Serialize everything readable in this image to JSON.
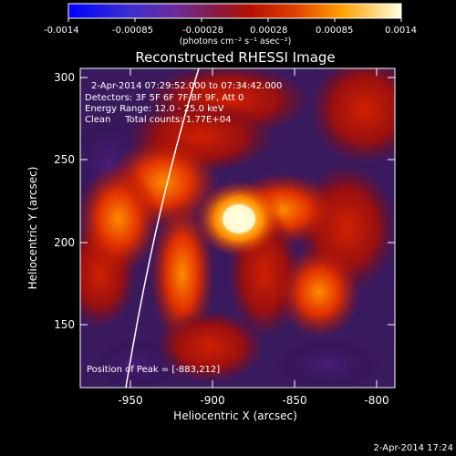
{
  "colorbar": {
    "ticks": [
      "-0.0014",
      "-0.00085",
      "-0.00028",
      "0.00028",
      "0.00085",
      "0.0014"
    ],
    "unit_label": "(photons cm⁻² s⁻¹ asec⁻²)"
  },
  "plot": {
    "title": "Reconstructed RHESSI Image",
    "info_lines": [
      "2-Apr-2014 07:29:52.000 to 07:34:42.000",
      "Detectors: 3F 5F 6F 7F 8F 9F, Att 0",
      "Energy Range: 12.0 - 25.0 keV",
      "Clean     Total counts: 1.77E+04"
    ],
    "peak_text": "Position of Peak = [-883,212]",
    "xlabel": "Heliocentric X (arcsec)",
    "ylabel": "Heliocentric Y (arcsec)",
    "x_ticks": [
      "-950",
      "-900",
      "-850",
      "-800"
    ],
    "y_ticks": [
      "300",
      "250",
      "200",
      "150"
    ]
  },
  "footer": {
    "timestamp": "2-Apr-2014 17:24"
  },
  "colors": {
    "background": "#000000",
    "low": "#3a1a6a",
    "mid": "#cc2000",
    "high": "#ffffe0"
  }
}
